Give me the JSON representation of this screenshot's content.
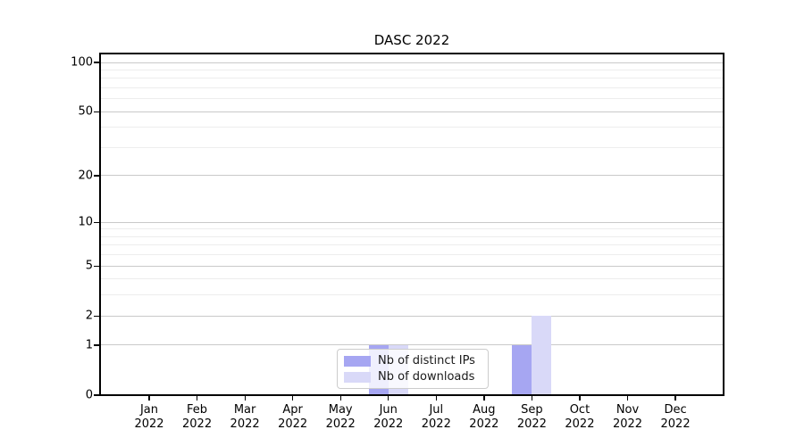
{
  "chart_data": {
    "type": "bar",
    "title": "DASC 2022",
    "categories": [
      "Jan 2022",
      "Feb 2022",
      "Mar 2022",
      "Apr 2022",
      "May 2022",
      "Jun 2022",
      "Jul 2022",
      "Aug 2022",
      "Sep 2022",
      "Oct 2022",
      "Nov 2022",
      "Dec 2022"
    ],
    "series": [
      {
        "name": "Nb of distinct IPs",
        "color": "#a6a6f2",
        "values": [
          0,
          0,
          0,
          0,
          0,
          1,
          0,
          0,
          1,
          0,
          0,
          0
        ]
      },
      {
        "name": "Nb of downloads",
        "color": "#d9d9f8",
        "values": [
          0,
          0,
          0,
          0,
          0,
          1,
          0,
          0,
          2,
          0,
          0,
          0
        ]
      }
    ],
    "xlabel": "",
    "ylabel": "",
    "yscale": "symlog (position proportional to log(1+value))",
    "yticks": [
      0,
      1,
      2,
      5,
      10,
      20,
      50,
      100
    ],
    "yticks_minor": [
      3,
      4,
      6,
      7,
      8,
      9,
      30,
      40,
      60,
      70,
      80,
      90
    ],
    "ylim": [
      0,
      113
    ],
    "grid": "horizontal major and minor gridlines",
    "legend_position": "lower center, inside plot",
    "colors": {
      "axis": "#000000",
      "grid_major": "#c9c9c9",
      "grid_minor": "#ededed",
      "background": "#ffffff"
    }
  }
}
